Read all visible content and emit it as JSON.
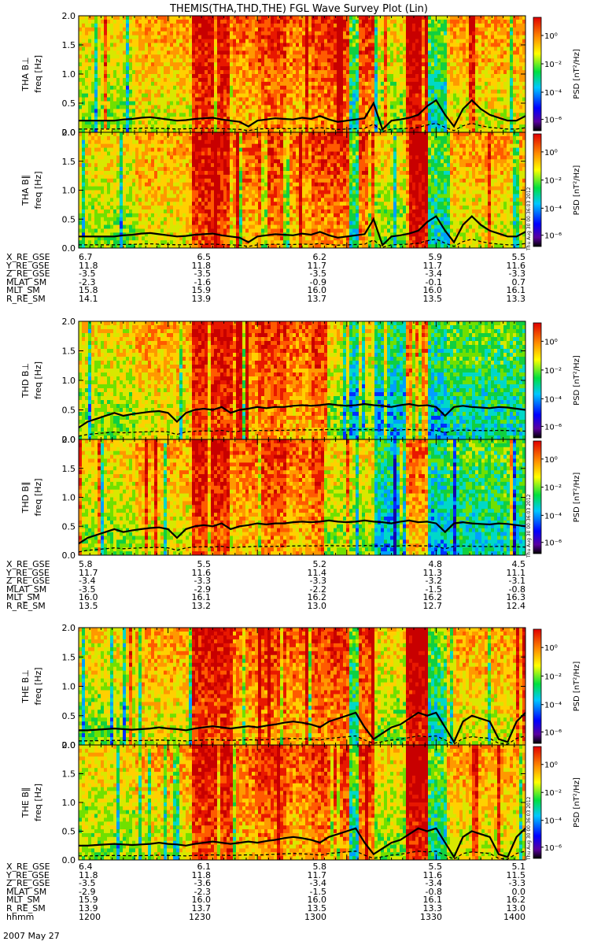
{
  "title": "THEMIS(THA,THD,THE) FGL Wave Survey Plot (Lin)",
  "ylabel_freq": "freq [Hz]",
  "yticks": [
    "0.0",
    "0.5",
    "1.0",
    "1.5",
    "2.0"
  ],
  "colorbar": {
    "label": "PSD [nT²/Hz]",
    "ticks": [
      "10⁰",
      "10⁻²",
      "10⁻⁴",
      "10⁻⁶"
    ]
  },
  "timestamp": "Thu Aug 30 00:36:03 2012",
  "chart_data": [
    {
      "type": "heatmap",
      "probe": "THA",
      "panel": "THA B⊥",
      "ylabel": "freq [Hz]",
      "ylim": [
        0,
        2
      ],
      "zscale": "log",
      "zlim": [
        1e-06,
        10
      ],
      "grid": false,
      "gyro_line": [
        0.2,
        0.2,
        0.2,
        0.2,
        0.2,
        0.22,
        0.23,
        0.25,
        0.26,
        0.24,
        0.22,
        0.2,
        0.21,
        0.23,
        0.24,
        0.25,
        0.22,
        0.2,
        0.18,
        0.1,
        0.2,
        0.22,
        0.24,
        0.23,
        0.22,
        0.25,
        0.23,
        0.28,
        0.22,
        0.18,
        0.2,
        0.22,
        0.24,
        0.5,
        0.05,
        0.2,
        0.22,
        0.25,
        0.3,
        0.45,
        0.55,
        0.3,
        0.1,
        0.4,
        0.55,
        0.4,
        0.3,
        0.25,
        0.2,
        0.2,
        0.28
      ]
    },
    {
      "type": "heatmap",
      "probe": "THA",
      "panel": "THA B∥",
      "ylabel": "freq [Hz]",
      "ylim": [
        0,
        2
      ],
      "zscale": "log",
      "zlim": [
        1e-06,
        10
      ],
      "grid": false,
      "gyro_line": [
        0.2,
        0.2,
        0.2,
        0.2,
        0.2,
        0.22,
        0.23,
        0.25,
        0.26,
        0.24,
        0.22,
        0.2,
        0.21,
        0.23,
        0.24,
        0.25,
        0.22,
        0.2,
        0.18,
        0.1,
        0.2,
        0.22,
        0.24,
        0.23,
        0.22,
        0.25,
        0.23,
        0.28,
        0.22,
        0.18,
        0.2,
        0.22,
        0.24,
        0.5,
        0.05,
        0.2,
        0.22,
        0.25,
        0.3,
        0.45,
        0.55,
        0.3,
        0.1,
        0.4,
        0.55,
        0.4,
        0.3,
        0.25,
        0.2,
        0.2,
        0.28
      ]
    },
    {
      "type": "heatmap",
      "probe": "THD",
      "panel": "THD B⊥",
      "ylabel": "freq [Hz]",
      "ylim": [
        0,
        2
      ],
      "zscale": "log",
      "zlim": [
        1e-06,
        10
      ],
      "grid": false,
      "gyro_line": [
        0.2,
        0.3,
        0.35,
        0.4,
        0.45,
        0.4,
        0.43,
        0.45,
        0.47,
        0.48,
        0.45,
        0.3,
        0.45,
        0.5,
        0.52,
        0.5,
        0.55,
        0.45,
        0.5,
        0.52,
        0.55,
        0.53,
        0.55,
        0.55,
        0.57,
        0.58,
        0.57,
        0.58,
        0.6,
        0.58,
        0.57,
        0.58,
        0.6,
        0.58,
        0.57,
        0.55,
        0.58,
        0.6,
        0.57,
        0.58,
        0.55,
        0.4,
        0.55,
        0.57,
        0.55,
        0.54,
        0.53,
        0.55,
        0.54,
        0.52,
        0.5
      ]
    },
    {
      "type": "heatmap",
      "probe": "THD",
      "panel": "THD B∥",
      "ylabel": "freq [Hz]",
      "ylim": [
        0,
        2
      ],
      "zscale": "log",
      "zlim": [
        1e-06,
        10
      ],
      "grid": false,
      "gyro_line": [
        0.2,
        0.3,
        0.35,
        0.4,
        0.45,
        0.4,
        0.43,
        0.45,
        0.47,
        0.48,
        0.45,
        0.3,
        0.45,
        0.5,
        0.52,
        0.5,
        0.55,
        0.45,
        0.5,
        0.52,
        0.55,
        0.53,
        0.55,
        0.55,
        0.57,
        0.58,
        0.57,
        0.58,
        0.6,
        0.58,
        0.57,
        0.58,
        0.6,
        0.58,
        0.57,
        0.55,
        0.58,
        0.6,
        0.57,
        0.58,
        0.55,
        0.4,
        0.55,
        0.57,
        0.55,
        0.54,
        0.53,
        0.55,
        0.54,
        0.52,
        0.5
      ]
    },
    {
      "type": "heatmap",
      "probe": "THE",
      "panel": "THE B⊥",
      "ylabel": "freq [Hz]",
      "ylim": [
        0,
        2
      ],
      "zscale": "log",
      "zlim": [
        1e-06,
        10
      ],
      "grid": false,
      "gyro_line": [
        0.25,
        0.25,
        0.26,
        0.27,
        0.28,
        0.27,
        0.26,
        0.27,
        0.28,
        0.3,
        0.28,
        0.27,
        0.25,
        0.28,
        0.3,
        0.32,
        0.3,
        0.28,
        0.3,
        0.32,
        0.3,
        0.33,
        0.35,
        0.38,
        0.4,
        0.38,
        0.35,
        0.3,
        0.4,
        0.45,
        0.5,
        0.55,
        0.3,
        0.1,
        0.2,
        0.3,
        0.35,
        0.45,
        0.55,
        0.5,
        0.55,
        0.3,
        0.05,
        0.4,
        0.5,
        0.45,
        0.4,
        0.1,
        0.05,
        0.4,
        0.55
      ]
    },
    {
      "type": "heatmap",
      "probe": "THE",
      "panel": "THE B∥",
      "ylabel": "freq [Hz]",
      "ylim": [
        0,
        2
      ],
      "zscale": "log",
      "zlim": [
        1e-06,
        10
      ],
      "grid": false,
      "gyro_line": [
        0.25,
        0.25,
        0.26,
        0.27,
        0.28,
        0.27,
        0.26,
        0.27,
        0.28,
        0.3,
        0.28,
        0.27,
        0.25,
        0.28,
        0.3,
        0.32,
        0.3,
        0.28,
        0.3,
        0.32,
        0.3,
        0.33,
        0.35,
        0.38,
        0.4,
        0.38,
        0.35,
        0.3,
        0.4,
        0.45,
        0.5,
        0.55,
        0.3,
        0.1,
        0.2,
        0.3,
        0.35,
        0.45,
        0.55,
        0.5,
        0.55,
        0.3,
        0.05,
        0.4,
        0.5,
        0.45,
        0.4,
        0.1,
        0.05,
        0.4,
        0.55
      ]
    }
  ],
  "ephemeris": [
    {
      "probe": "THA",
      "rows": [
        {
          "label": "X_RE_GSE",
          "values": [
            "6.7",
            "6.5",
            "6.2",
            "5.9",
            "5.5"
          ]
        },
        {
          "label": "Y_RE_GSE",
          "values": [
            "11.8",
            "11.8",
            "11.7",
            "11.7",
            "11.6"
          ]
        },
        {
          "label": "Z_RE_GSE",
          "values": [
            "-3.5",
            "-3.5",
            "-3.5",
            "-3.4",
            "-3.3"
          ]
        },
        {
          "label": "MLAT_SM",
          "values": [
            "-2.3",
            "-1.6",
            "-0.9",
            "-0.1",
            "0.7"
          ]
        },
        {
          "label": "MLT_SM",
          "values": [
            "15.8",
            "15.9",
            "16.0",
            "16.0",
            "16.1"
          ]
        },
        {
          "label": "R_RE_SM",
          "values": [
            "14.1",
            "13.9",
            "13.7",
            "13.5",
            "13.3"
          ]
        }
      ]
    },
    {
      "probe": "THD",
      "rows": [
        {
          "label": "X_RE_GSE",
          "values": [
            "5.8",
            "5.5",
            "5.2",
            "4.8",
            "4.5"
          ]
        },
        {
          "label": "Y_RE_GSE",
          "values": [
            "11.7",
            "11.6",
            "11.4",
            "11.3",
            "11.1"
          ]
        },
        {
          "label": "Z_RE_GSE",
          "values": [
            "-3.4",
            "-3.3",
            "-3.3",
            "-3.2",
            "-3.1"
          ]
        },
        {
          "label": "MLAT_SM",
          "values": [
            "-3.5",
            "-2.9",
            "-2.2",
            "-1.5",
            "-0.8"
          ]
        },
        {
          "label": "MLT_SM",
          "values": [
            "16.0",
            "16.1",
            "16.2",
            "16.2",
            "16.3"
          ]
        },
        {
          "label": "R_RE_SM",
          "values": [
            "13.5",
            "13.2",
            "13.0",
            "12.7",
            "12.4"
          ]
        }
      ]
    },
    {
      "probe": "THE",
      "rows": [
        {
          "label": "X_RE_GSE",
          "values": [
            "6.4",
            "6.1",
            "5.8",
            "5.5",
            "5.1"
          ]
        },
        {
          "label": "Y_RE_GSE",
          "values": [
            "11.8",
            "11.8",
            "11.7",
            "11.6",
            "11.5"
          ]
        },
        {
          "label": "Z_RE_GSE",
          "values": [
            "-3.5",
            "-3.6",
            "-3.4",
            "-3.4",
            "-3.3"
          ]
        },
        {
          "label": "MLAT_SM",
          "values": [
            "-2.9",
            "-2.3",
            "-1.5",
            "-0.8",
            "0.0"
          ]
        },
        {
          "label": "MLT_SM",
          "values": [
            "15.9",
            "16.0",
            "16.0",
            "16.1",
            "16.2"
          ]
        },
        {
          "label": "R_RE_SM",
          "values": [
            "13.9",
            "13.7",
            "13.5",
            "13.3",
            "13.0"
          ]
        },
        {
          "label": "hhmm",
          "values": [
            "1200",
            "1230",
            "1300",
            "1330",
            "1400"
          ]
        }
      ]
    }
  ],
  "date": "2007 May 27",
  "colors": {
    "line": "#000000"
  }
}
